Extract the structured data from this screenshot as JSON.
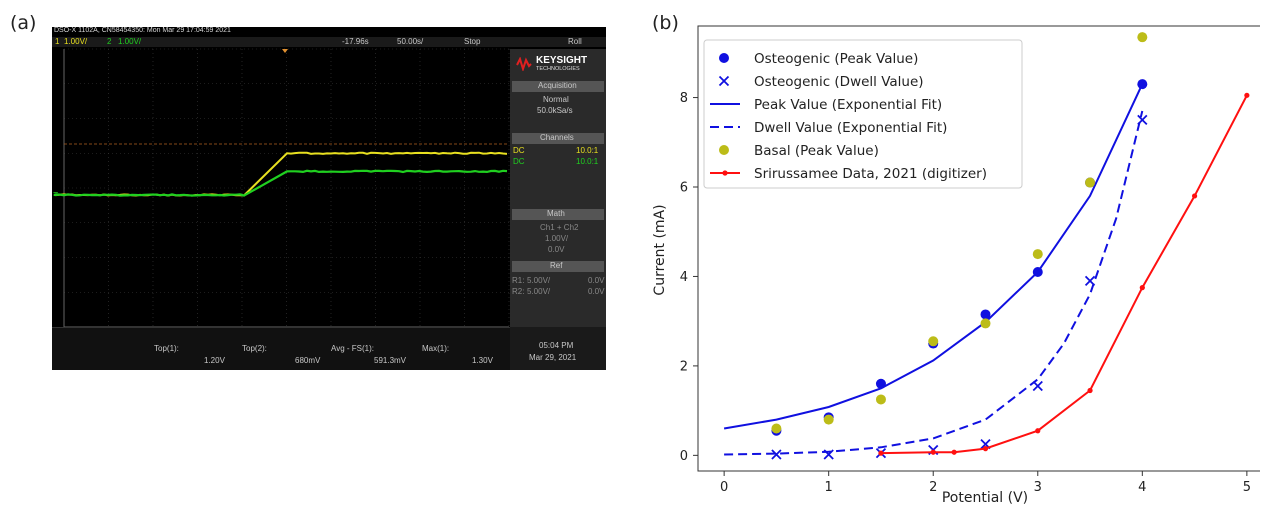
{
  "panel_a_label": "(a)",
  "panel_b_label": "(b)",
  "scope": {
    "header": "DSO-X 1102A, CN58454350: Mon Mar 29 17:04:59 2021",
    "ch1_num": "1",
    "ch1_scale": "1.00V/",
    "ch2_num": "2",
    "ch2_scale": "1.00V/",
    "time_offset": "-17.96s",
    "timebase": "50.00s/",
    "run_state": "Stop",
    "mode": "Roll",
    "brand": "KEYSIGHT",
    "brand_sub": "TECHNOLOGIES",
    "acquisition_title": "Acquisition",
    "acquisition_mode": "Normal",
    "sample_rate": "50.0kSa/s",
    "channels_title": "Channels",
    "ch_rows": [
      {
        "coupling": "DC",
        "value": "10.0:1"
      },
      {
        "coupling": "DC",
        "value": "10.0:1"
      }
    ],
    "math_title": "Math",
    "math_expr": "Ch1 + Ch2",
    "math_scale": "1.00V/",
    "math_offset": "0.0V",
    "ref_title": "Ref",
    "ref_rows": [
      {
        "name": "R1:",
        "scale": "5.00V/",
        "offset": "0.0V"
      },
      {
        "name": "R2:",
        "scale": "5.00V/",
        "offset": "0.0V"
      }
    ],
    "measurements": [
      {
        "label": "Top(1):",
        "value": "1.20V"
      },
      {
        "label": "Top(2):",
        "value": "680mV"
      },
      {
        "label": "Avg - FS(1):",
        "value": "591.3mV"
      },
      {
        "label": "Max(1):",
        "value": "1.30V"
      }
    ],
    "clock_time": "05:04 PM",
    "clock_date": "Mar 29, 2021",
    "colors": {
      "ch1": "#e8e020",
      "ch2": "#20d020",
      "grid": "#3a3a3a"
    },
    "trace_levels": {
      "ch1_low": 0.0,
      "ch1_high": 1.2,
      "ch2_low": 0.0,
      "ch2_high": 0.68
    }
  },
  "chart_data": {
    "type": "scatter",
    "title": "",
    "xlabel": "Potential (V)",
    "ylabel": "Current (mA)",
    "xlim": [
      -0.25,
      5.25
    ],
    "ylim": [
      -0.35,
      9.6
    ],
    "xticks": [
      0,
      1,
      2,
      3,
      4,
      5
    ],
    "yticks": [
      0,
      2,
      4,
      6,
      8
    ],
    "grid": false,
    "legend_position": "top-left",
    "series": [
      {
        "name": "Osteogenic (Peak Value)",
        "kind": "scatter-dot",
        "color": "#1010e0",
        "x": [
          0.5,
          1.0,
          1.5,
          2.0,
          2.5,
          3.0,
          3.5,
          4.0
        ],
        "y": [
          0.55,
          0.85,
          1.6,
          2.5,
          3.15,
          4.1,
          6.1,
          8.3
        ]
      },
      {
        "name": "Osteogenic (Dwell Value)",
        "kind": "scatter-x",
        "color": "#1010e0",
        "x": [
          0.5,
          1.0,
          1.5,
          2.0,
          2.5,
          3.0,
          3.5,
          4.0
        ],
        "y": [
          0.02,
          0.02,
          0.05,
          0.12,
          0.25,
          1.55,
          3.9,
          7.5
        ]
      },
      {
        "name": "Peak Value (Exponential Fit)",
        "kind": "line-solid",
        "color": "#1010e0",
        "x": [
          0.0,
          0.5,
          1.0,
          1.5,
          2.0,
          2.5,
          3.0,
          3.5,
          4.0
        ],
        "y": [
          0.6,
          0.8,
          1.08,
          1.5,
          2.12,
          2.98,
          4.1,
          5.8,
          8.3
        ]
      },
      {
        "name": "Dwell Value (Exponential Fit)",
        "kind": "line-dashed",
        "color": "#1010e0",
        "x": [
          0.0,
          0.5,
          1.0,
          1.5,
          2.0,
          2.5,
          3.0,
          3.25,
          3.5,
          3.75,
          4.0
        ],
        "y": [
          0.02,
          0.04,
          0.08,
          0.18,
          0.38,
          0.8,
          1.7,
          2.5,
          3.6,
          5.3,
          7.7
        ]
      },
      {
        "name": "Basal (Peak Value)",
        "kind": "scatter-dot",
        "color": "#bcbc18",
        "x": [
          0.5,
          1.0,
          1.5,
          2.0,
          2.5,
          3.0,
          3.5,
          4.0
        ],
        "y": [
          0.6,
          0.8,
          1.25,
          2.55,
          2.95,
          4.5,
          6.1,
          9.35
        ]
      },
      {
        "name": "Srirussamee Data, 2021 (digitizer)",
        "kind": "line-markers",
        "color": "#ff1010",
        "x": [
          1.5,
          2.0,
          2.2,
          2.5,
          3.0,
          3.5,
          4.0,
          4.5,
          5.0
        ],
        "y": [
          0.05,
          0.07,
          0.07,
          0.15,
          0.55,
          1.45,
          3.75,
          5.8,
          8.05
        ]
      }
    ]
  }
}
